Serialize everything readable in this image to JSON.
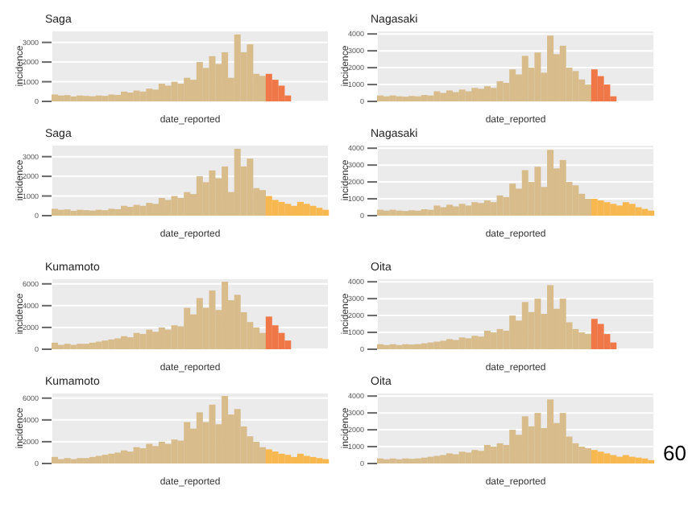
{
  "chart_data": [
    {
      "type": "bar",
      "title": "Saga",
      "xlabel": "date_reported",
      "ylabel": "incidence",
      "categories": [
        null,
        null,
        null,
        null,
        null,
        null,
        null,
        null,
        null,
        null,
        null,
        null,
        null,
        null,
        null,
        null,
        null,
        null,
        null,
        null,
        null,
        null,
        null,
        null,
        null,
        null,
        null,
        null,
        null,
        null,
        null,
        null,
        null,
        null,
        null,
        null,
        null,
        null,
        null,
        null,
        null,
        null,
        null,
        null
      ],
      "ylim": [
        0,
        3600
      ],
      "yticks": [
        0,
        1000,
        2000,
        3000
      ],
      "grid": true,
      "legend": false,
      "tick_labels": "y",
      "series": [
        {
          "color": "#d8bc8c",
          "values": [
            350,
            300,
            320,
            250,
            300,
            280,
            260,
            300,
            280,
            350,
            330,
            500,
            450,
            550,
            500,
            650,
            600,
            900,
            800,
            1000,
            900,
            1200,
            1100,
            2000,
            1700,
            2300,
            1900,
            2500,
            1200,
            3400,
            2500,
            2900,
            1400,
            1300,
            null,
            null,
            null,
            null,
            null,
            null,
            null,
            null,
            null,
            null
          ]
        },
        {
          "color": "#f07848",
          "values": [
            null,
            null,
            null,
            null,
            null,
            null,
            null,
            null,
            null,
            null,
            null,
            null,
            null,
            null,
            null,
            null,
            null,
            null,
            null,
            null,
            null,
            null,
            null,
            null,
            null,
            null,
            null,
            null,
            null,
            null,
            null,
            null,
            null,
            null,
            1400,
            1100,
            800,
            300,
            null,
            null,
            null,
            null,
            null,
            null
          ]
        }
      ]
    },
    {
      "type": "bar",
      "title": "Nagasaki",
      "xlabel": "date_reported",
      "ylabel": "incidence",
      "categories": [
        null,
        null,
        null,
        null,
        null,
        null,
        null,
        null,
        null,
        null,
        null,
        null,
        null,
        null,
        null,
        null,
        null,
        null,
        null,
        null,
        null,
        null,
        null,
        null,
        null,
        null,
        null,
        null,
        null,
        null,
        null,
        null,
        null,
        null,
        null,
        null,
        null,
        null,
        null,
        null,
        null,
        null,
        null,
        null
      ],
      "ylim": [
        0,
        4200
      ],
      "yticks": [
        0,
        1000,
        2000,
        3000,
        4000
      ],
      "grid": true,
      "legend": false,
      "tick_labels": "y",
      "series": [
        {
          "color": "#d8bc8c",
          "values": [
            350,
            300,
            350,
            300,
            280,
            320,
            300,
            380,
            350,
            600,
            500,
            650,
            550,
            700,
            600,
            800,
            750,
            900,
            800,
            1200,
            1100,
            1900,
            1600,
            2700,
            2000,
            2900,
            1700,
            3900,
            2800,
            3300,
            2000,
            1800,
            1300,
            1000,
            null,
            null,
            null,
            null,
            null,
            null,
            null,
            null,
            null,
            null
          ]
        },
        {
          "color": "#f07848",
          "values": [
            null,
            null,
            null,
            null,
            null,
            null,
            null,
            null,
            null,
            null,
            null,
            null,
            null,
            null,
            null,
            null,
            null,
            null,
            null,
            null,
            null,
            null,
            null,
            null,
            null,
            null,
            null,
            null,
            null,
            null,
            null,
            null,
            null,
            null,
            1900,
            1500,
            1000,
            300,
            null,
            null,
            null,
            null,
            null,
            null
          ]
        }
      ]
    },
    {
      "type": "bar",
      "title": "Saga",
      "xlabel": "date_reported",
      "ylabel": "incidence",
      "categories": [
        null,
        null,
        null,
        null,
        null,
        null,
        null,
        null,
        null,
        null,
        null,
        null,
        null,
        null,
        null,
        null,
        null,
        null,
        null,
        null,
        null,
        null,
        null,
        null,
        null,
        null,
        null,
        null,
        null,
        null,
        null,
        null,
        null,
        null,
        null,
        null,
        null,
        null,
        null,
        null,
        null,
        null,
        null,
        null
      ],
      "ylim": [
        0,
        3600
      ],
      "yticks": [
        0,
        1000,
        2000,
        3000
      ],
      "grid": true,
      "legend": false,
      "tick_labels": "y",
      "series": [
        {
          "color": "#d8bc8c",
          "values": [
            350,
            300,
            320,
            250,
            300,
            280,
            260,
            300,
            280,
            350,
            330,
            500,
            450,
            550,
            500,
            650,
            600,
            900,
            800,
            1000,
            900,
            1200,
            1100,
            2000,
            1700,
            2300,
            1900,
            2500,
            1200,
            3400,
            2500,
            2900,
            1400,
            1300,
            null,
            null,
            null,
            null,
            null,
            null,
            null,
            null,
            null,
            null
          ]
        },
        {
          "color": "#f8b850",
          "values": [
            null,
            null,
            null,
            null,
            null,
            null,
            null,
            null,
            null,
            null,
            null,
            null,
            null,
            null,
            null,
            null,
            null,
            null,
            null,
            null,
            null,
            null,
            null,
            null,
            null,
            null,
            null,
            null,
            null,
            null,
            null,
            null,
            null,
            null,
            1000,
            800,
            700,
            600,
            500,
            700,
            600,
            500,
            400,
            300
          ]
        }
      ]
    },
    {
      "type": "bar",
      "title": "Nagasaki",
      "xlabel": "date_reported",
      "ylabel": "incidence",
      "categories": [
        null,
        null,
        null,
        null,
        null,
        null,
        null,
        null,
        null,
        null,
        null,
        null,
        null,
        null,
        null,
        null,
        null,
        null,
        null,
        null,
        null,
        null,
        null,
        null,
        null,
        null,
        null,
        null,
        null,
        null,
        null,
        null,
        null,
        null,
        null,
        null,
        null,
        null,
        null,
        null,
        null,
        null,
        null,
        null
      ],
      "ylim": [
        0,
        4200
      ],
      "yticks": [
        0,
        1000,
        2000,
        3000,
        4000
      ],
      "grid": true,
      "legend": false,
      "tick_labels": "y",
      "series": [
        {
          "color": "#d8bc8c",
          "values": [
            350,
            300,
            350,
            300,
            280,
            320,
            300,
            380,
            350,
            600,
            500,
            650,
            550,
            700,
            600,
            800,
            750,
            900,
            800,
            1200,
            1100,
            1900,
            1600,
            2700,
            2000,
            2900,
            1700,
            3900,
            2800,
            3300,
            2000,
            1800,
            1300,
            1000,
            null,
            null,
            null,
            null,
            null,
            null,
            null,
            null,
            null,
            null
          ]
        },
        {
          "color": "#f8b850",
          "values": [
            null,
            null,
            null,
            null,
            null,
            null,
            null,
            null,
            null,
            null,
            null,
            null,
            null,
            null,
            null,
            null,
            null,
            null,
            null,
            null,
            null,
            null,
            null,
            null,
            null,
            null,
            null,
            null,
            null,
            null,
            null,
            null,
            null,
            null,
            1000,
            900,
            800,
            700,
            600,
            800,
            700,
            500,
            400,
            300
          ]
        }
      ]
    },
    {
      "type": "bar",
      "title": "Kumamoto",
      "xlabel": "date_reported",
      "ylabel": "incidence",
      "categories": [
        null,
        null,
        null,
        null,
        null,
        null,
        null,
        null,
        null,
        null,
        null,
        null,
        null,
        null,
        null,
        null,
        null,
        null,
        null,
        null,
        null,
        null,
        null,
        null,
        null,
        null,
        null,
        null,
        null,
        null,
        null,
        null,
        null,
        null,
        null,
        null,
        null,
        null,
        null,
        null,
        null,
        null,
        null,
        null
      ],
      "ylim": [
        0,
        6500
      ],
      "yticks": [
        0,
        2000,
        4000,
        6000
      ],
      "grid": true,
      "legend": false,
      "tick_labels": "y",
      "series": [
        {
          "color": "#d8bc8c",
          "values": [
            600,
            400,
            500,
            400,
            500,
            500,
            600,
            700,
            800,
            900,
            1000,
            1200,
            1100,
            1500,
            1400,
            1800,
            1600,
            2000,
            1800,
            2200,
            2100,
            3800,
            3200,
            4700,
            3800,
            5400,
            3600,
            6200,
            4500,
            5000,
            3400,
            2500,
            2000,
            1500,
            null,
            null,
            null,
            null,
            null,
            null,
            null,
            null,
            null,
            null
          ]
        },
        {
          "color": "#f07848",
          "values": [
            null,
            null,
            null,
            null,
            null,
            null,
            null,
            null,
            null,
            null,
            null,
            null,
            null,
            null,
            null,
            null,
            null,
            null,
            null,
            null,
            null,
            null,
            null,
            null,
            null,
            null,
            null,
            null,
            null,
            null,
            null,
            null,
            null,
            null,
            3000,
            2200,
            1500,
            800,
            null,
            null,
            null,
            null,
            null,
            null
          ]
        }
      ]
    },
    {
      "type": "bar",
      "title": "Oita",
      "xlabel": "date_reported",
      "ylabel": "incidence",
      "categories": [
        null,
        null,
        null,
        null,
        null,
        null,
        null,
        null,
        null,
        null,
        null,
        null,
        null,
        null,
        null,
        null,
        null,
        null,
        null,
        null,
        null,
        null,
        null,
        null,
        null,
        null,
        null,
        null,
        null,
        null,
        null,
        null,
        null,
        null,
        null,
        null,
        null,
        null,
        null,
        null,
        null,
        null,
        null,
        null
      ],
      "ylim": [
        0,
        4200
      ],
      "yticks": [
        0,
        1000,
        2000,
        3000,
        4000
      ],
      "grid": true,
      "legend": false,
      "tick_labels": "y",
      "series": [
        {
          "color": "#d8bc8c",
          "values": [
            300,
            250,
            300,
            250,
            300,
            280,
            300,
            350,
            400,
            450,
            500,
            600,
            550,
            700,
            650,
            800,
            750,
            1100,
            1000,
            1200,
            1100,
            2000,
            1700,
            2800,
            2200,
            3000,
            2100,
            3800,
            2400,
            3000,
            1600,
            1200,
            1000,
            900,
            null,
            null,
            null,
            null,
            null,
            null,
            null,
            null,
            null,
            null
          ]
        },
        {
          "color": "#f07848",
          "values": [
            null,
            null,
            null,
            null,
            null,
            null,
            null,
            null,
            null,
            null,
            null,
            null,
            null,
            null,
            null,
            null,
            null,
            null,
            null,
            null,
            null,
            null,
            null,
            null,
            null,
            null,
            null,
            null,
            null,
            null,
            null,
            null,
            null,
            null,
            1800,
            1500,
            900,
            400,
            null,
            null,
            null,
            null,
            null,
            null
          ]
        }
      ]
    },
    {
      "type": "bar",
      "title": "Kumamoto",
      "xlabel": "date_reported",
      "ylabel": "incidence",
      "categories": [
        null,
        null,
        null,
        null,
        null,
        null,
        null,
        null,
        null,
        null,
        null,
        null,
        null,
        null,
        null,
        null,
        null,
        null,
        null,
        null,
        null,
        null,
        null,
        null,
        null,
        null,
        null,
        null,
        null,
        null,
        null,
        null,
        null,
        null,
        null,
        null,
        null,
        null,
        null,
        null,
        null,
        null,
        null,
        null
      ],
      "ylim": [
        0,
        6500
      ],
      "yticks": [
        0,
        2000,
        4000,
        6000
      ],
      "grid": true,
      "legend": false,
      "tick_labels": "y",
      "series": [
        {
          "color": "#d8bc8c",
          "values": [
            600,
            400,
            500,
            400,
            500,
            500,
            600,
            700,
            800,
            900,
            1000,
            1200,
            1100,
            1500,
            1400,
            1800,
            1600,
            2000,
            1800,
            2200,
            2100,
            3800,
            3200,
            4700,
            3800,
            5400,
            3600,
            6200,
            4500,
            5000,
            3400,
            2500,
            2000,
            1500,
            null,
            null,
            null,
            null,
            null,
            null,
            null,
            null,
            null,
            null
          ]
        },
        {
          "color": "#f8b850",
          "values": [
            null,
            null,
            null,
            null,
            null,
            null,
            null,
            null,
            null,
            null,
            null,
            null,
            null,
            null,
            null,
            null,
            null,
            null,
            null,
            null,
            null,
            null,
            null,
            null,
            null,
            null,
            null,
            null,
            null,
            null,
            null,
            null,
            null,
            null,
            1300,
            1100,
            900,
            800,
            600,
            900,
            700,
            600,
            500,
            400
          ]
        }
      ]
    },
    {
      "type": "bar",
      "title": "Oita",
      "xlabel": "date_reported",
      "ylabel": "incidence",
      "categories": [
        null,
        null,
        null,
        null,
        null,
        null,
        null,
        null,
        null,
        null,
        null,
        null,
        null,
        null,
        null,
        null,
        null,
        null,
        null,
        null,
        null,
        null,
        null,
        null,
        null,
        null,
        null,
        null,
        null,
        null,
        null,
        null,
        null,
        null,
        null,
        null,
        null,
        null,
        null,
        null,
        null,
        null,
        null,
        null
      ],
      "ylim": [
        0,
        4200
      ],
      "yticks": [
        0,
        1000,
        2000,
        3000,
        4000
      ],
      "grid": true,
      "legend": false,
      "tick_labels": "y",
      "annotations": [
        "60"
      ],
      "series": [
        {
          "color": "#d8bc8c",
          "values": [
            300,
            250,
            300,
            250,
            300,
            280,
            300,
            350,
            400,
            450,
            500,
            600,
            550,
            700,
            650,
            800,
            750,
            1100,
            1000,
            1200,
            1100,
            2000,
            1700,
            2800,
            2200,
            3000,
            2100,
            3800,
            2400,
            3000,
            1600,
            1200,
            1000,
            900,
            null,
            null,
            null,
            null,
            null,
            null,
            null,
            null,
            null,
            null
          ]
        },
        {
          "color": "#f8b850",
          "values": [
            null,
            null,
            null,
            null,
            null,
            null,
            null,
            null,
            null,
            null,
            null,
            null,
            null,
            null,
            null,
            null,
            null,
            null,
            null,
            null,
            null,
            null,
            null,
            null,
            null,
            null,
            null,
            null,
            null,
            null,
            null,
            null,
            null,
            null,
            800,
            700,
            600,
            500,
            400,
            500,
            400,
            350,
            300,
            200
          ]
        }
      ]
    }
  ]
}
